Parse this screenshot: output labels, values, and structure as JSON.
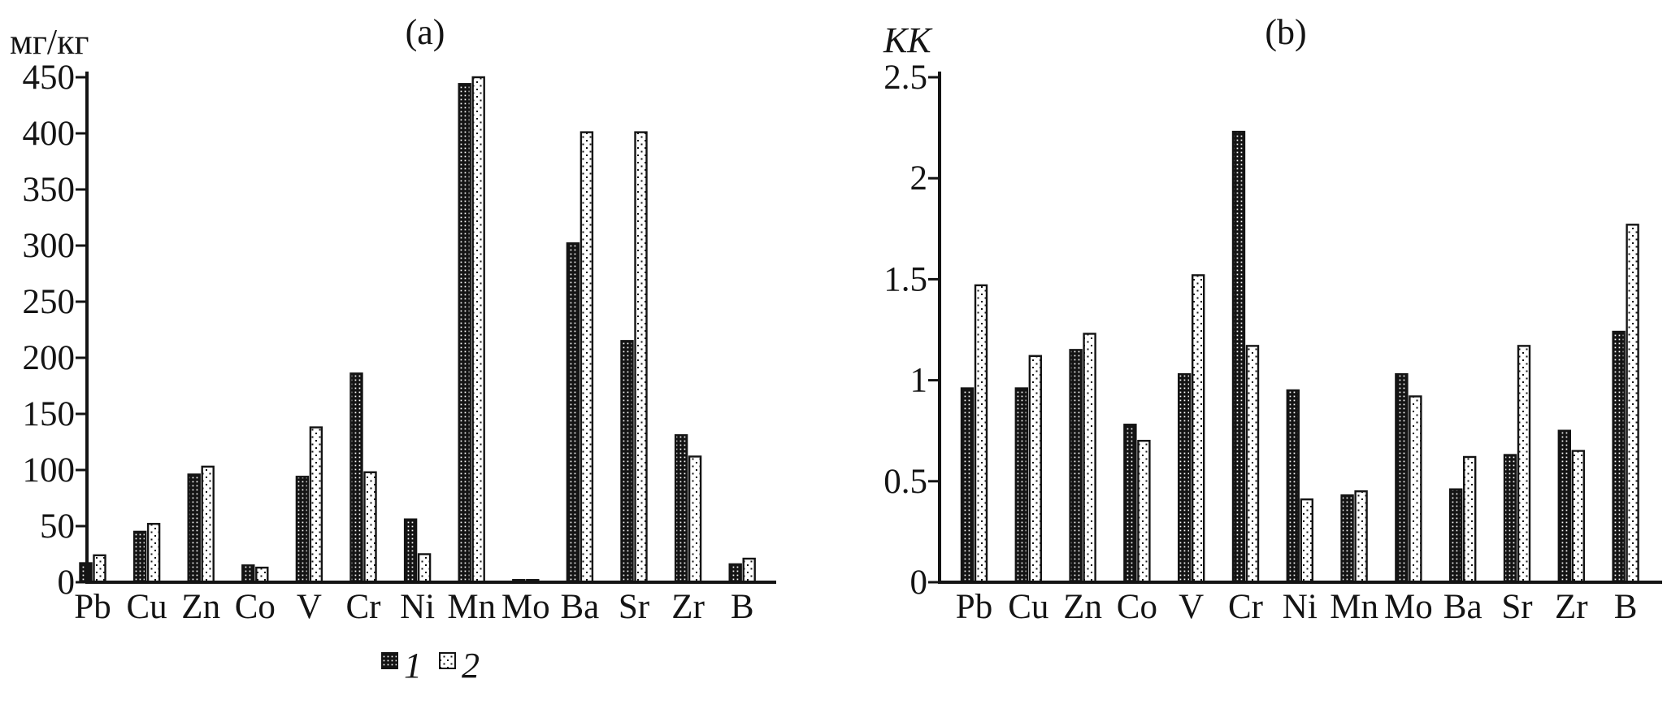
{
  "page": {
    "background_color": "#ffffff",
    "ink_color": "#141414"
  },
  "legend": {
    "items": [
      {
        "label": "1",
        "swatch": "black-with-white-dots"
      },
      {
        "label": "2",
        "swatch": "white-with-black-dots"
      }
    ]
  },
  "chart_data": [
    {
      "type": "bar",
      "panel": "(a)",
      "title": "(a)",
      "ylabel": "мг/кг",
      "xlabel": "",
      "categories": [
        "Pb",
        "Cu",
        "Zn",
        "Co",
        "V",
        "Cr",
        "Ni",
        "Mn",
        "Mo",
        "Ba",
        "Sr",
        "Zr",
        "B"
      ],
      "series": [
        {
          "name": "1",
          "fill_style": "black-with-white-dots",
          "values": [
            17,
            45,
            96,
            15,
            94,
            186,
            56,
            444,
            2,
            302,
            215,
            131,
            16
          ]
        },
        {
          "name": "2",
          "fill_style": "white-with-black-dots",
          "values": [
            24,
            52,
            103,
            13,
            138,
            98,
            25,
            450,
            2,
            401,
            401,
            112,
            21
          ]
        }
      ],
      "ylim": [
        0,
        450
      ],
      "yticks": [
        0,
        50,
        100,
        150,
        200,
        250,
        300,
        350,
        400,
        450
      ],
      "grid": false,
      "legend_position": "bottom-center"
    },
    {
      "type": "bar",
      "panel": "(b)",
      "title": "(b)",
      "ylabel": "КК",
      "xlabel": "",
      "categories": [
        "Pb",
        "Cu",
        "Zn",
        "Co",
        "V",
        "Cr",
        "Ni",
        "Mn",
        "Mo",
        "Ba",
        "Sr",
        "Zr",
        "B"
      ],
      "series": [
        {
          "name": "1",
          "fill_style": "black-with-white-dots",
          "values": [
            0.96,
            0.96,
            1.15,
            0.78,
            1.03,
            2.23,
            0.95,
            0.43,
            1.03,
            0.46,
            0.63,
            0.75,
            1.24
          ]
        },
        {
          "name": "2",
          "fill_style": "white-with-black-dots",
          "values": [
            1.47,
            1.12,
            1.23,
            0.7,
            1.52,
            1.17,
            0.41,
            0.45,
            0.92,
            0.62,
            1.17,
            0.65,
            1.77
          ]
        }
      ],
      "ylim": [
        0,
        2.5
      ],
      "yticks": [
        0,
        0.5,
        1,
        1.5,
        2,
        2.5
      ],
      "grid": false,
      "legend_position": "none"
    }
  ]
}
